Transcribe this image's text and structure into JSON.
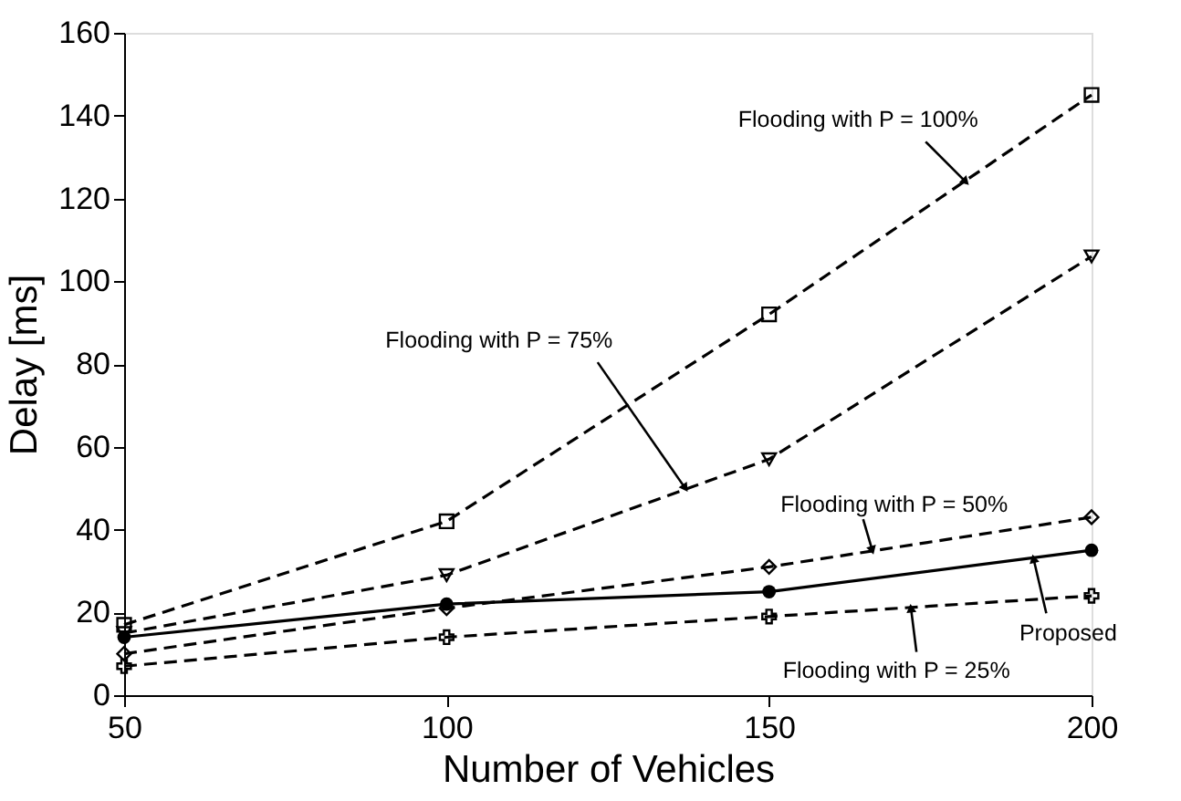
{
  "chart_data": {
    "type": "line",
    "xlabel": "Number of Vehicles",
    "ylabel": "Delay [ms]",
    "x": [
      50,
      100,
      150,
      200
    ],
    "series": [
      {
        "color": "#000000",
        "values": [
          17,
          42,
          92,
          145
        ],
        "line_style": "dashed",
        "marker": "square"
      },
      {
        "color": "#000000",
        "values": [
          15,
          29,
          57,
          106
        ],
        "line_style": "dashed",
        "marker": "triangle"
      },
      {
        "color": "#000000",
        "values": [
          10,
          21,
          31,
          43
        ],
        "line_style": "dashed",
        "marker": "diamond"
      },
      {
        "color": "#000000",
        "values": [
          14,
          22,
          25,
          35
        ],
        "line_style": "solid",
        "marker": "circle"
      },
      {
        "color": "#000000",
        "values": [
          7,
          14,
          19,
          24
        ],
        "line_style": "dashed",
        "marker": "cross"
      }
    ],
    "annotations": [
      {
        "text": "Flooding with P = 100%",
        "x": 180.5,
        "y": 124
      },
      {
        "text": "Flooding with P = 75%",
        "x": 137,
        "y": 50
      },
      {
        "text": "Flooding with P = 50%",
        "x": 166,
        "y": 35
      },
      {
        "text": "Proposed",
        "x": 191,
        "y": 33
      },
      {
        "text": "Flooding with P = 25%",
        "x": 172,
        "y": 21
      }
    ],
    "xlim": [
      50,
      200
    ],
    "xticks": [
      50,
      100,
      150,
      200
    ],
    "ylim": [
      0,
      160
    ],
    "yticks": [
      0,
      20,
      40,
      60,
      80,
      100,
      120,
      140,
      160
    ],
    "grid": false
  }
}
